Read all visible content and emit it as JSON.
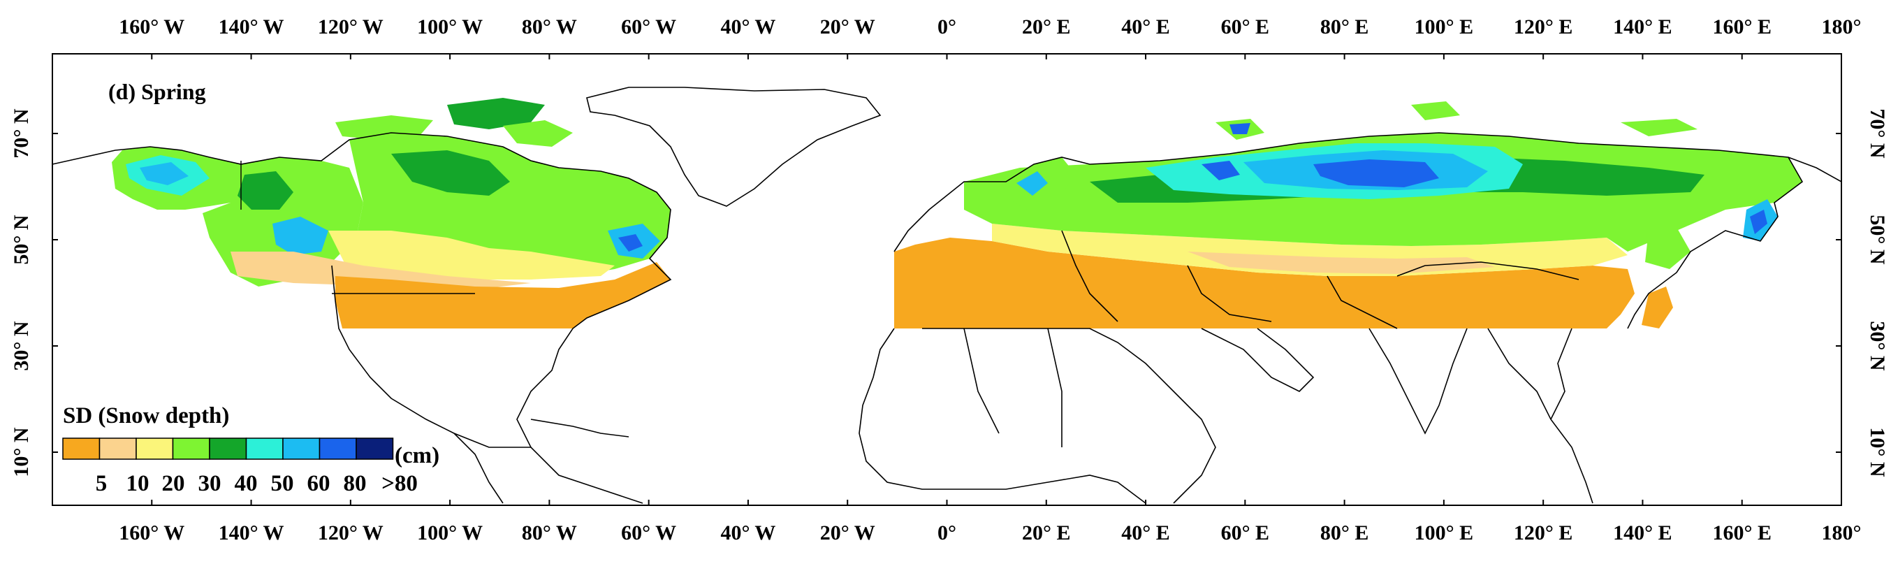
{
  "panel_label": "(d) Spring",
  "axes": {
    "lon_ticks": [
      "160° W",
      "140° W",
      "120° W",
      "100° W",
      "80° W",
      "60° W",
      "40° W",
      "20° W",
      "0°",
      "20° E",
      "40° E",
      "60° E",
      "80° E",
      "100° E",
      "120° E",
      "140° E",
      "160° E",
      "180°"
    ],
    "lat_ticks": [
      "70° N",
      "50° N",
      "30° N",
      "10° N"
    ],
    "lon_range": [
      -180,
      180
    ],
    "lat_range": [
      0,
      85
    ]
  },
  "legend": {
    "title": "SD (Snow depth)",
    "unit": "(cm)",
    "labels": [
      "5",
      "10",
      "20",
      "30",
      "40",
      "50",
      "60",
      "80",
      ">80"
    ],
    "colors": [
      "#f7a81f",
      "#fbd38e",
      "#fbf57a",
      "#7ef432",
      "#14a62a",
      "#2cf0d8",
      "#1cbcf2",
      "#1a64ec",
      "#0a1f7a"
    ]
  },
  "snow_cover_extent": {
    "south_limit_lat": 35
  }
}
